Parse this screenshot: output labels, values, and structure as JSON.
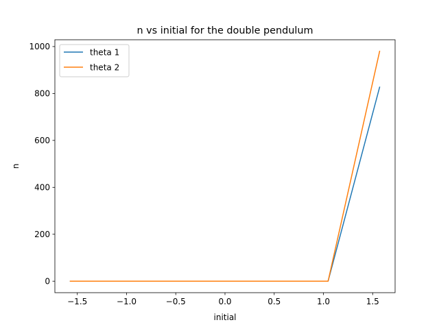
{
  "chart_data": {
    "type": "line",
    "title": "n vs initial for the double pendulum",
    "xlabel": "initial",
    "ylabel": "n",
    "xlim": [
      -1.7279,
      1.7279
    ],
    "ylim": [
      -49,
      1029
    ],
    "xticks": [
      -1.5,
      -1.0,
      -0.5,
      0.0,
      0.5,
      1.0,
      1.5
    ],
    "xtick_labels": [
      "−1.5",
      "−1.0",
      "−0.5",
      "0.0",
      "0.5",
      "1.0",
      "1.5"
    ],
    "yticks": [
      0,
      200,
      400,
      600,
      800,
      1000
    ],
    "ytick_labels": [
      "0",
      "200",
      "400",
      "600",
      "800",
      "1000"
    ],
    "grid": false,
    "legend_position": "top-left",
    "series": [
      {
        "name": "theta 1",
        "color": "#1f77b4",
        "x": [
          -1.5708,
          1.0472,
          1.5708
        ],
        "y": [
          0,
          0,
          827
        ]
      },
      {
        "name": "theta 2",
        "color": "#ff7f0e",
        "x": [
          -1.5708,
          1.0472,
          1.5708
        ],
        "y": [
          0,
          0,
          980
        ]
      }
    ]
  }
}
